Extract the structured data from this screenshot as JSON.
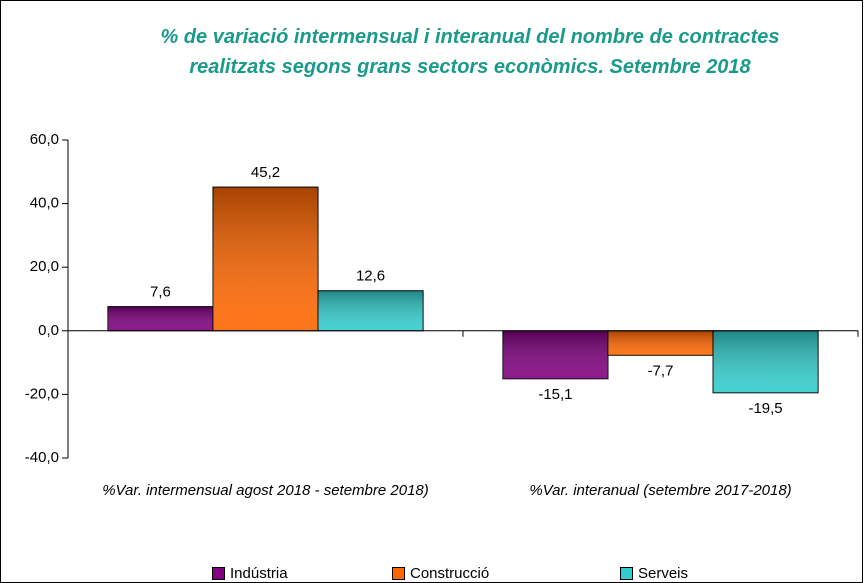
{
  "chart_data": {
    "type": "bar",
    "title": "% de variació intermensual i interanual del nombre de contractes realitzats segons grans sectors econòmics. Setembre 2018",
    "categories": [
      "%Var. intermensual agost 2018 - setembre 2018)",
      "%Var. interanual (setembre 2017-2018)"
    ],
    "series": [
      {
        "name": "Indústria",
        "color": "#800080",
        "values": [
          7.6,
          -15.1
        ],
        "value_labels": [
          "7,6",
          "-15,1"
        ]
      },
      {
        "name": "Construcció",
        "color": "#ff6600",
        "values": [
          45.2,
          -7.7
        ],
        "value_labels": [
          "45,2",
          "-7,7"
        ]
      },
      {
        "name": "Serveis",
        "color": "#33cccc",
        "values": [
          12.6,
          -19.5
        ],
        "value_labels": [
          "12,6",
          "-19,5"
        ]
      }
    ],
    "ylim": [
      -40,
      60
    ],
    "yticks": [
      {
        "value": -40,
        "label": "-40,0"
      },
      {
        "value": -20,
        "label": "-20,0"
      },
      {
        "value": 0,
        "label": "0,0"
      },
      {
        "value": 20,
        "label": "20,0"
      },
      {
        "value": 40,
        "label": "40,0"
      },
      {
        "value": 60,
        "label": "60,0"
      }
    ],
    "legend": "bottom"
  }
}
